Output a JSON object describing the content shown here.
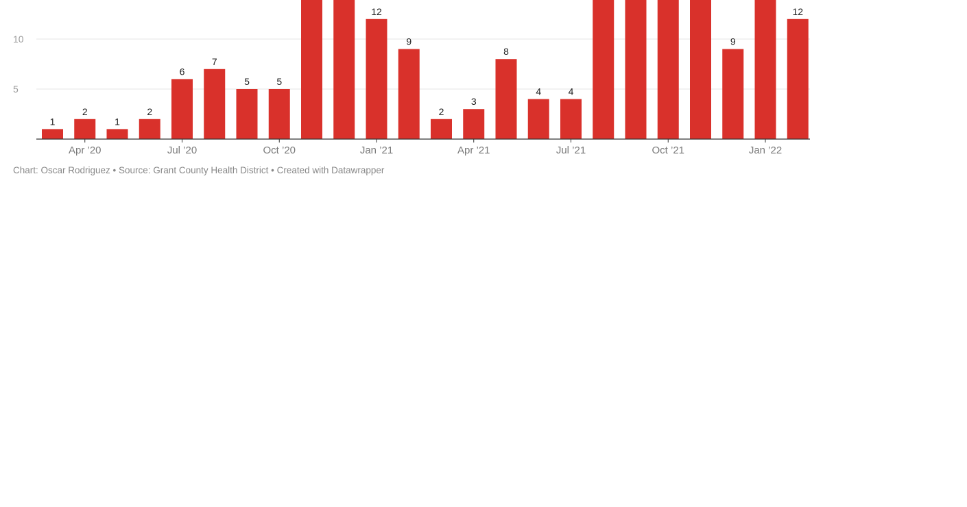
{
  "chart_data": {
    "type": "bar",
    "x": [
      "2020-03",
      "2020-04",
      "2020-05",
      "2020-06",
      "2020-07",
      "2020-08",
      "2020-09",
      "2020-10",
      "2020-11",
      "2020-12",
      "2021-01",
      "2021-02",
      "2021-03",
      "2021-04",
      "2021-05",
      "2021-06",
      "2021-07",
      "2021-08",
      "2021-09",
      "2021-10",
      "2021-11",
      "2021-12",
      "2022-01",
      "2022-02"
    ],
    "values": [
      1,
      2,
      1,
      2,
      6,
      7,
      5,
      5,
      null,
      null,
      12,
      9,
      2,
      3,
      8,
      4,
      4,
      null,
      null,
      null,
      null,
      9,
      null,
      12
    ],
    "clipped_above_visible_range": [
      false,
      false,
      false,
      false,
      false,
      false,
      false,
      false,
      true,
      true,
      false,
      false,
      false,
      false,
      false,
      false,
      false,
      true,
      true,
      true,
      true,
      false,
      true,
      false
    ],
    "data_labels": [
      "1",
      "2",
      "1",
      "2",
      "6",
      "7",
      "5",
      "5",
      "",
      "",
      "12",
      "9",
      "2",
      "3",
      "8",
      "4",
      "4",
      "",
      "",
      "",
      "",
      "9",
      "",
      "12"
    ],
    "x_tick_labels": [
      "Apr ’20",
      "Jul ’20",
      "Oct ’20",
      "Jan ’21",
      "Apr ’21",
      "Jul ’21",
      "Oct ’21",
      "Jan ’22"
    ],
    "x_tick_positions": [
      "2020-04",
      "2020-07",
      "2020-10",
      "2021-01",
      "2021-04",
      "2021-07",
      "2021-10",
      "2022-01"
    ],
    "y_tick_labels": [
      "5",
      "10"
    ],
    "y_tick_values": [
      5,
      10
    ],
    "ylim": [
      0,
      14
    ],
    "grid": true,
    "title": "",
    "xlabel": "",
    "ylabel": "",
    "colors": {
      "bar": "#d9312b",
      "grid": "#e6e6e6",
      "axis": "#333333"
    }
  },
  "footer": {
    "text": "Chart: Oscar Rodriguez • Source: Grant County Health District • Created with Datawrapper"
  }
}
